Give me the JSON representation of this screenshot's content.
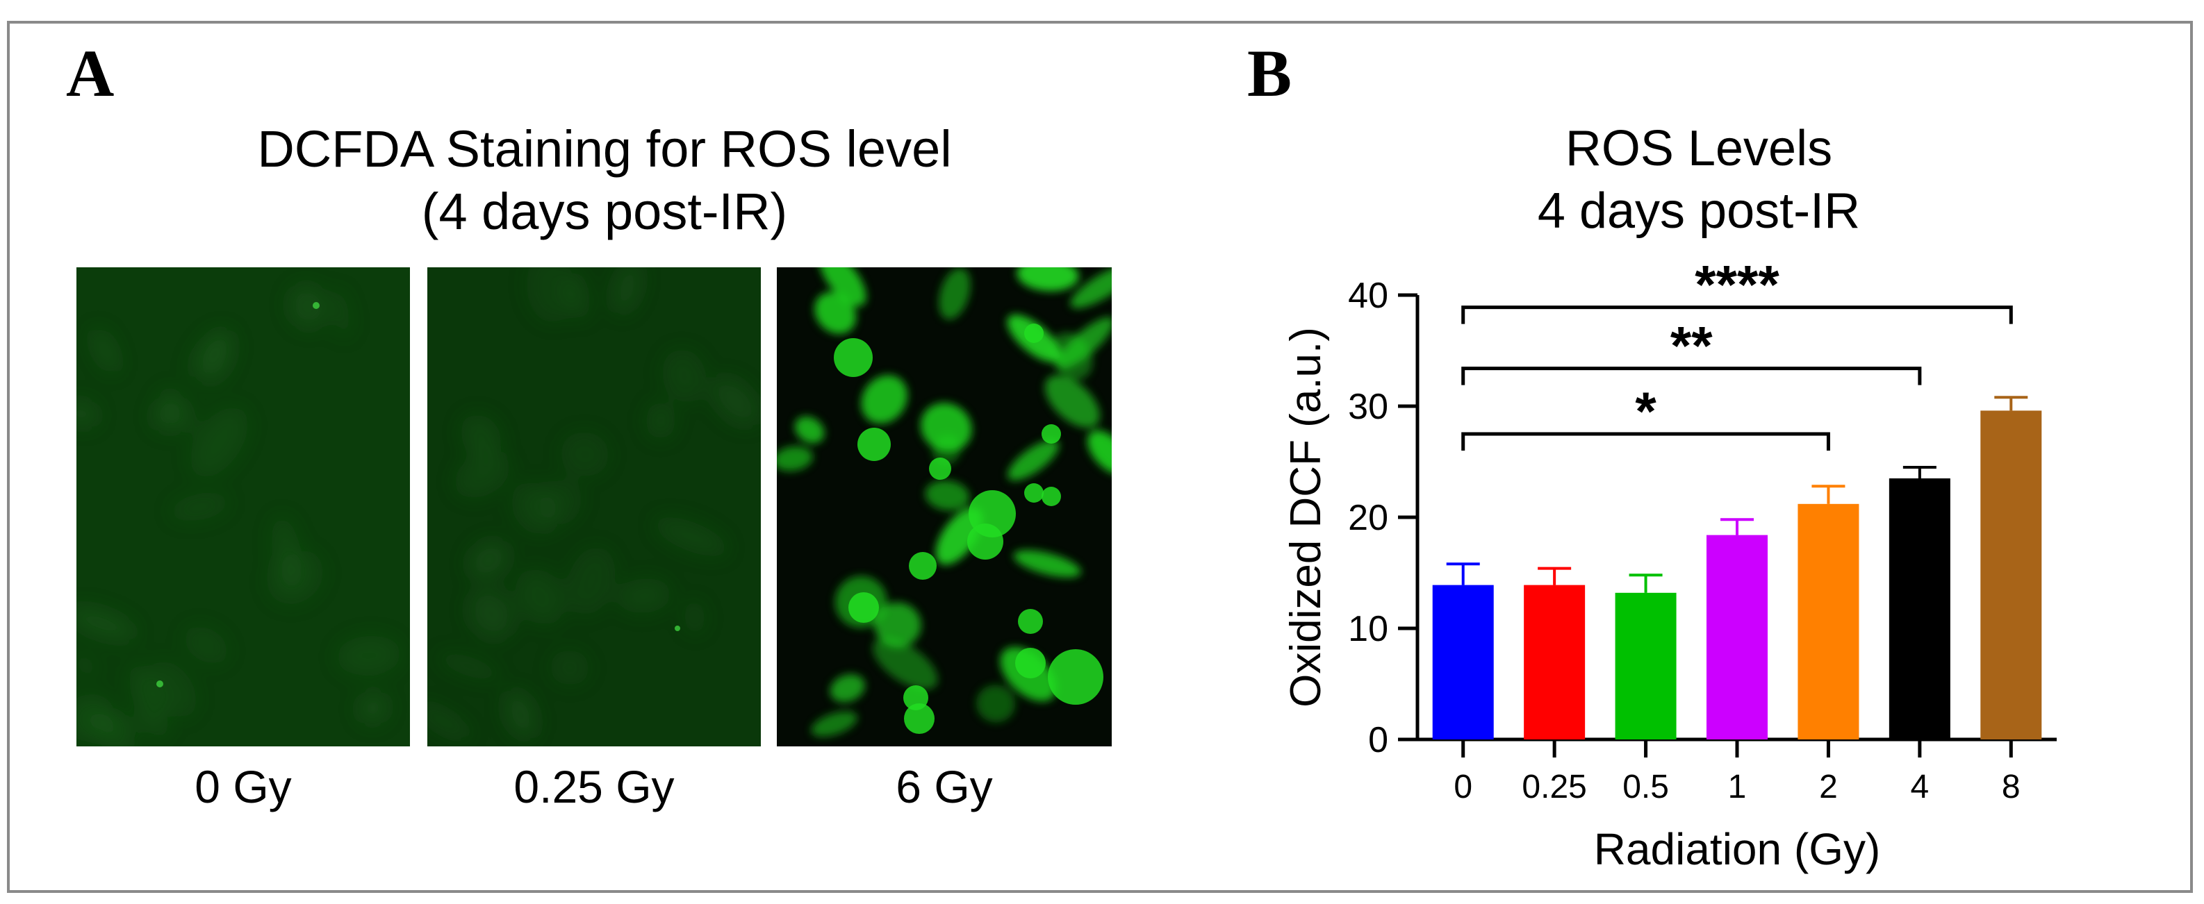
{
  "panel_a": {
    "letter": "A",
    "title_line1": "DCFDA Staining for ROS level",
    "title_line2": "(4 days post-IR)",
    "images": [
      {
        "label": "0 Gy",
        "background": "#0b3d0b"
      },
      {
        "label": "0.25 Gy",
        "background": "#0a380a"
      },
      {
        "label": "6 Gy",
        "background": "#030a03"
      }
    ],
    "stain_color": "#22dd22"
  },
  "panel_b": {
    "letter": "B"
  },
  "chart_data": {
    "type": "bar",
    "title": "ROS Levels",
    "subtitle": "4 days post-IR",
    "xlabel": "Radiation (Gy)",
    "ylabel": "Oxidized DCF (a.u.)",
    "ylim": [
      0,
      40
    ],
    "yticks": [
      0,
      10,
      20,
      30,
      40
    ],
    "categories": [
      "0",
      "0.25",
      "0.5",
      "1",
      "2",
      "4",
      "8"
    ],
    "values": [
      13.9,
      13.9,
      13.2,
      18.4,
      21.2,
      23.5,
      29.6
    ],
    "errors": [
      1.9,
      1.5,
      1.6,
      1.4,
      1.6,
      1.0,
      1.2
    ],
    "colors": [
      "#0000ff",
      "#ff0000",
      "#00c000",
      "#cc00ff",
      "#ff8000",
      "#000000",
      "#a86418"
    ],
    "grid": false,
    "legend": "none",
    "significance": [
      {
        "from": 0,
        "to": 4,
        "label": "*",
        "y": 27.5
      },
      {
        "from": 0,
        "to": 5,
        "label": "**",
        "y": 33.4
      },
      {
        "from": 0,
        "to": 6,
        "label": "****",
        "y": 38.9
      }
    ]
  }
}
